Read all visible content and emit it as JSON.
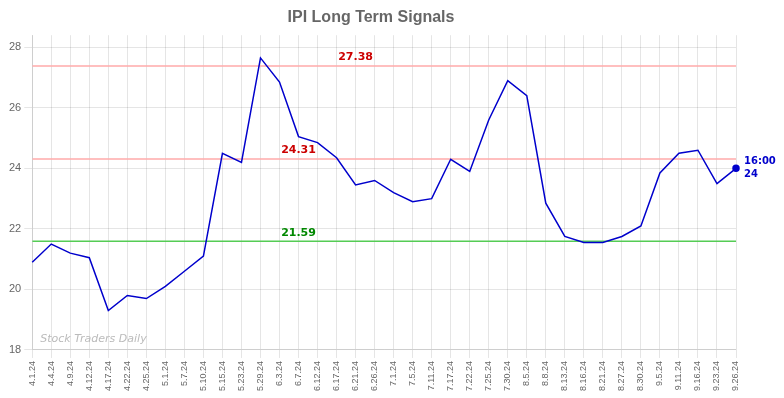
{
  "chart_data": {
    "type": "line",
    "title": "IPI Long Term Signals",
    "categories": [
      "4.1.24",
      "4.4.24",
      "4.9.24",
      "4.12.24",
      "4.17.24",
      "4.22.24",
      "4.25.24",
      "5.1.24",
      "5.7.24",
      "5.10.24",
      "5.15.24",
      "5.23.24",
      "5.29.24",
      "6.3.24",
      "6.7.24",
      "6.12.24",
      "6.17.24",
      "6.21.24",
      "6.26.24",
      "7.1.24",
      "7.5.24",
      "7.11.24",
      "7.17.24",
      "7.22.24",
      "7.25.24",
      "7.30.24",
      "8.5.24",
      "8.8.24",
      "8.13.24",
      "8.16.24",
      "8.21.24",
      "8.27.24",
      "8.30.24",
      "9.5.24",
      "9.11.24",
      "9.16.24",
      "9.23.24",
      "9.26.24"
    ],
    "values": [
      20.9,
      21.5,
      21.2,
      21.05,
      19.3,
      19.8,
      19.7,
      20.1,
      20.6,
      21.1,
      24.5,
      24.2,
      27.65,
      26.85,
      25.05,
      24.85,
      24.35,
      23.45,
      23.6,
      23.2,
      22.9,
      23.0,
      24.3,
      23.9,
      25.6,
      26.9,
      26.4,
      22.85,
      21.75,
      21.55,
      21.55,
      21.75,
      22.1,
      23.85,
      24.5,
      24.6,
      23.5,
      24.0
    ],
    "color": "#0000cc",
    "ylim": [
      18,
      28.4
    ],
    "yticks": [
      18,
      20,
      22,
      24,
      26,
      28
    ],
    "grid": true,
    "annotations": [
      {
        "text": "27.38",
        "y": 27.38,
        "x": "6.21.24",
        "color": "#cc0000",
        "line_color": "#ffaaaa"
      },
      {
        "text": "24.31",
        "y": 24.31,
        "x": "6.7.24",
        "color": "#cc0000",
        "line_color": "#ffaaaa"
      },
      {
        "text": "21.59",
        "y": 21.59,
        "x": "6.7.24",
        "color": "#008800",
        "line_color": "#55cc55"
      },
      {
        "text": "16:00",
        "x": "9.26.24",
        "color": "#0000cc"
      },
      {
        "text": "24",
        "x": "9.26.24",
        "color": "#0000cc"
      },
      {
        "text": "Stock Traders Daily",
        "color": "#bbbbbb"
      }
    ]
  }
}
